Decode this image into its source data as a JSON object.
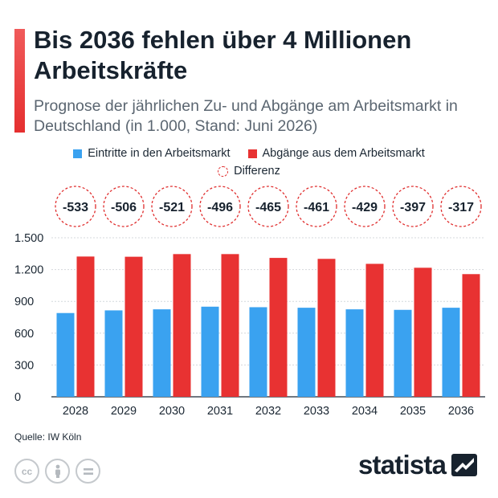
{
  "header": {
    "title": "Bis 2036 fehlen über 4 Millionen Arbeitskräfte",
    "subtitle": "Prognose der jährlichen Zu- und Abgänge am Arbeitsmarkt in Deutschland (in 1.000, Stand: Juni 2026)"
  },
  "legend": {
    "entries": "Eintritte in den Arbeitsmarkt",
    "exits": "Abgänge aus dem Arbeitsmarkt",
    "difference": "Differenz"
  },
  "colors": {
    "entries": "#3aa2f0",
    "exits": "#e83232",
    "difference": "#e02e2e",
    "accent": "#eb4040"
  },
  "chart_data": {
    "type": "bar",
    "categories": [
      "2028",
      "2029",
      "2030",
      "2031",
      "2032",
      "2033",
      "2034",
      "2035",
      "2036"
    ],
    "series": [
      {
        "name": "Eintritte in den Arbeitsmarkt",
        "values": [
          790,
          815,
          825,
          850,
          845,
          840,
          825,
          820,
          840
        ]
      },
      {
        "name": "Abgänge aus dem Arbeitsmarkt",
        "values": [
          1323,
          1321,
          1346,
          1346,
          1310,
          1301,
          1254,
          1217,
          1157
        ]
      }
    ],
    "differences": [
      -533,
      -506,
      -521,
      -496,
      -465,
      -461,
      -429,
      -397,
      -317
    ],
    "difference_labels": [
      "-533",
      "-506",
      "-521",
      "-496",
      "-465",
      "-461",
      "-429",
      "-397",
      "-317"
    ],
    "y_ticks": [
      0,
      300,
      600,
      900,
      1200,
      1500
    ],
    "y_tick_labels": [
      "0",
      "300",
      "600",
      "900",
      "1.200",
      "1.500"
    ],
    "ylim": [
      0,
      1500
    ],
    "grid": true,
    "legend_position": "top"
  },
  "footer": {
    "source": "Quelle: IW Köln",
    "brand": "statista",
    "license_icons": [
      "cc-icon",
      "person-icon",
      "equals-icon"
    ]
  }
}
